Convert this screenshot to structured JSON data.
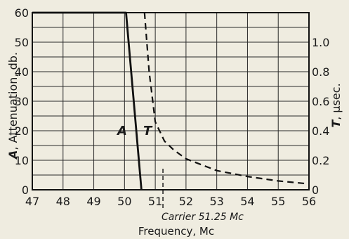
{
  "chart_data": {
    "type": "line",
    "xlabel": "Frequency, Mc",
    "x_ticks": [
      47,
      48,
      49,
      50,
      51,
      52,
      53,
      54,
      55,
      56
    ],
    "xlim": [
      47,
      56
    ],
    "left_axis": {
      "label_bold": "A",
      "label_rest": ", Attenuation, db.",
      "ticks": [
        0,
        10,
        20,
        30,
        40,
        50,
        60
      ],
      "ylim": [
        0,
        60
      ]
    },
    "right_axis": {
      "label_bold": "T",
      "label_rest": ", μsec.",
      "ticks": [
        "0",
        "0.2",
        "0.4",
        "0.6",
        "0.8",
        "1.0"
      ],
      "tick_values": [
        0,
        0.2,
        0.4,
        0.6,
        0.8,
        1.0
      ],
      "ylim": [
        0,
        1.2
      ]
    },
    "series": [
      {
        "name": "A",
        "axis": "left",
        "style": "solid",
        "points": [
          [
            47,
            60
          ],
          [
            50.05,
            60
          ],
          [
            50.55,
            0
          ]
        ]
      },
      {
        "name": "T",
        "axis": "right",
        "style": "dashed",
        "points": [
          [
            50.65,
            1.2
          ],
          [
            50.8,
            0.8
          ],
          [
            51.0,
            0.46
          ],
          [
            51.3,
            0.33
          ],
          [
            51.6,
            0.27
          ],
          [
            52.0,
            0.21
          ],
          [
            52.5,
            0.17
          ],
          [
            53.0,
            0.13
          ],
          [
            54.0,
            0.09
          ],
          [
            55.0,
            0.06
          ],
          [
            56.0,
            0.04
          ]
        ]
      }
    ],
    "curve_labels": [
      "A",
      "T"
    ],
    "annotation": {
      "text": "Carrier 51.25 Mc",
      "x": 51.25
    },
    "grid": true
  }
}
